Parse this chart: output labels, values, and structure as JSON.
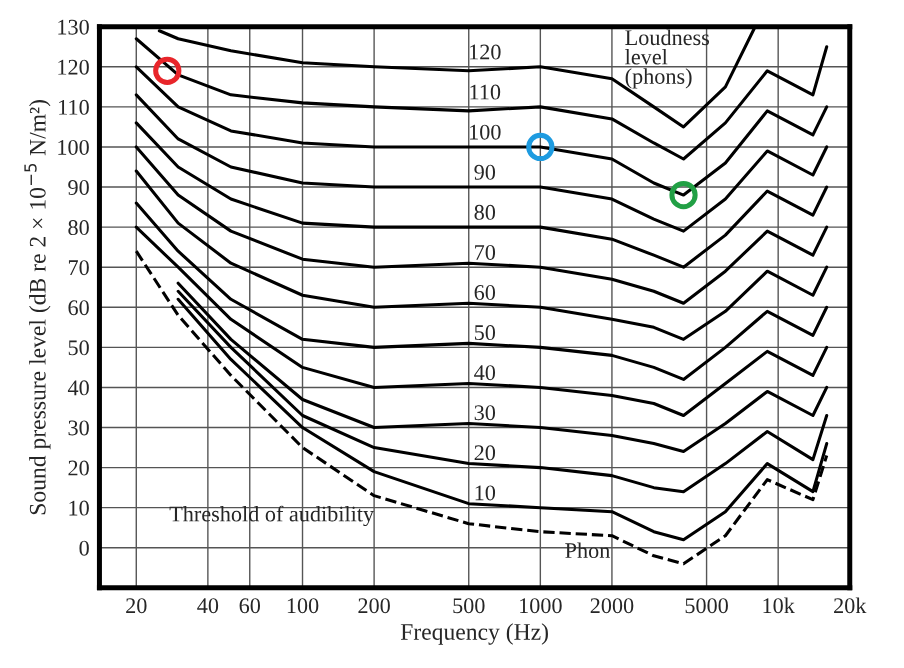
{
  "chart_data": {
    "type": "line",
    "xlabel": "Frequency (Hz)",
    "ylabel": "Sound pressure level (dB re 2 × 10$^{−5}$ N/m²)",
    "log": "x",
    "xlim": [
      14,
      20000
    ],
    "ylim": [
      -10,
      130
    ],
    "xticks": [
      20,
      40,
      60,
      100,
      200,
      500,
      1000,
      2000,
      5000,
      {
        "value": 10000,
        "label": "10k"
      },
      {
        "value": 20000,
        "label": "20k"
      }
    ],
    "yticks": [
      0,
      10,
      20,
      30,
      40,
      50,
      60,
      70,
      80,
      90,
      100,
      110,
      120,
      130
    ],
    "grid": true,
    "legend": false,
    "marker": "none",
    "line_style": "solid",
    "x": [
      20,
      30,
      50,
      100,
      200,
      500,
      1000,
      2000,
      3000,
      4000,
      6000,
      9000,
      14000,
      16000
    ],
    "annotations": [
      "Loudness\nlevel\n(phons)",
      "Phon"
    ],
    "series": [
      {
        "name": "120",
        "color": "#000000",
        "x": [
          25,
          30,
          50,
          100,
          200,
          500,
          1000,
          2000,
          3000,
          4000,
          6000,
          8000
        ],
        "values": [
          129,
          127,
          124,
          121,
          120,
          119,
          120,
          117,
          110,
          105,
          115,
          130
        ]
      },
      {
        "name": "110",
        "color": "#000000",
        "values": [
          127,
          118,
          113,
          111,
          110,
          109,
          110,
          107,
          101,
          97,
          106,
          119,
          113,
          125
        ]
      },
      {
        "name": "100",
        "color": "#000000",
        "values": [
          120,
          110,
          104,
          101,
          100,
          100,
          100,
          97,
          91,
          88,
          96,
          109,
          103,
          110
        ]
      },
      {
        "name": "90",
        "color": "#000000",
        "values": [
          113,
          102,
          95,
          91,
          90,
          90,
          90,
          87,
          82,
          79,
          87,
          99,
          93,
          100
        ]
      },
      {
        "name": "80",
        "color": "#000000",
        "values": [
          106,
          95,
          87,
          81,
          80,
          80,
          80,
          77,
          73,
          70,
          78,
          89,
          83,
          90
        ]
      },
      {
        "name": "70",
        "color": "#000000",
        "values": [
          100,
          88,
          79,
          72,
          70,
          71,
          70,
          67,
          64,
          61,
          69,
          79,
          73,
          80
        ]
      },
      {
        "name": "60",
        "color": "#000000",
        "values": [
          94,
          81,
          71,
          63,
          60,
          61,
          60,
          57,
          55,
          52,
          59,
          69,
          63,
          70
        ]
      },
      {
        "name": "50",
        "color": "#000000",
        "values": [
          86,
          74,
          62,
          52,
          50,
          51,
          50,
          48,
          45,
          42,
          50,
          59,
          53,
          60
        ]
      },
      {
        "name": "40",
        "color": "#000000",
        "values": [
          80,
          70,
          57,
          45,
          40,
          41,
          40,
          38,
          36,
          33,
          41,
          49,
          43,
          50
        ]
      },
      {
        "name": "30",
        "color": "#000000",
        "values": [
          null,
          66,
          52,
          37,
          30,
          31,
          30,
          28,
          26,
          24,
          31,
          39,
          33,
          40
        ]
      },
      {
        "name": "20",
        "color": "#000000",
        "values": [
          null,
          64,
          50,
          33,
          25,
          21,
          20,
          18,
          15,
          14,
          21,
          29,
          22,
          33
        ]
      },
      {
        "name": "10",
        "color": "#000000",
        "values": [
          null,
          62,
          47,
          30,
          19,
          11,
          10,
          9,
          4,
          2,
          9,
          21,
          14,
          26
        ]
      },
      {
        "name": "Threshold of audibility",
        "color": "#000000",
        "line_style": "dashed",
        "values": [
          74,
          58,
          43,
          25,
          13,
          6,
          4,
          3,
          -2,
          -4,
          3,
          17,
          12,
          23
        ]
      },
      {
        "type": "scatter",
        "color": "#e8262b",
        "marker": "circle",
        "x": [
          27
        ],
        "values": [
          119
        ]
      },
      {
        "type": "scatter",
        "color": "#1e9be0",
        "marker": "circle",
        "x": [
          1000
        ],
        "values": [
          100
        ]
      },
      {
        "type": "scatter",
        "color": "#22a045",
        "marker": "circle",
        "x": [
          4000
        ],
        "values": [
          88
        ]
      }
    ]
  }
}
